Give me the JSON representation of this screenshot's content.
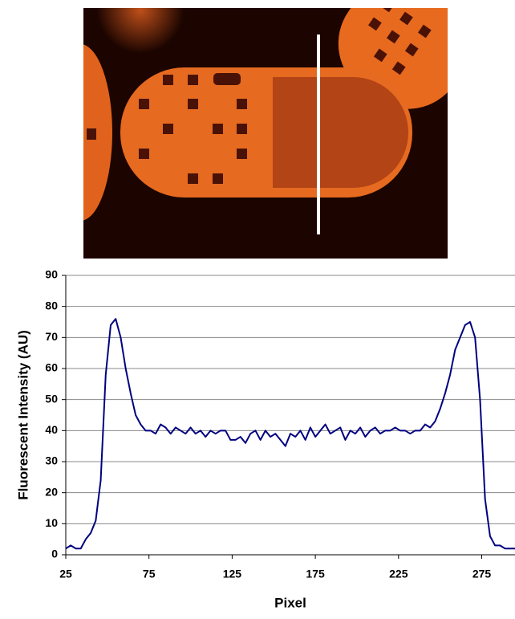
{
  "chart_data": {
    "type": "line",
    "y_label": "Fluorescent Intensity (AU)",
    "x_label": "Pixel",
    "x": [
      25,
      28,
      31,
      34,
      37,
      40,
      43,
      46,
      49,
      52,
      55,
      58,
      61,
      64,
      67,
      70,
      73,
      76,
      79,
      82,
      85,
      88,
      91,
      94,
      97,
      100,
      103,
      106,
      109,
      112,
      115,
      118,
      121,
      124,
      127,
      130,
      133,
      136,
      139,
      142,
      145,
      148,
      151,
      154,
      157,
      160,
      163,
      166,
      169,
      172,
      175,
      178,
      181,
      184,
      187,
      190,
      193,
      196,
      199,
      202,
      205,
      208,
      211,
      214,
      217,
      220,
      223,
      226,
      229,
      232,
      235,
      238,
      241,
      244,
      247,
      250,
      253,
      256,
      259,
      262,
      265,
      268,
      271,
      274,
      277,
      280,
      283,
      286,
      289,
      292,
      295
    ],
    "series": [
      {
        "color": "#000080",
        "values": [
          2,
          3,
          2,
          2,
          5,
          7,
          11,
          24,
          58,
          74,
          76,
          70,
          60,
          52,
          45,
          42,
          40,
          40,
          39,
          42,
          41,
          39,
          41,
          40,
          39,
          41,
          39,
          40,
          38,
          40,
          39,
          40,
          40,
          37,
          37,
          38,
          36,
          39,
          40,
          37,
          40,
          38,
          39,
          37,
          35,
          39,
          38,
          40,
          37,
          41,
          38,
          40,
          42,
          39,
          40,
          41,
          37,
          40,
          39,
          41,
          38,
          40,
          41,
          39,
          40,
          40,
          41,
          40,
          40,
          39,
          40,
          40,
          42,
          41,
          43,
          47,
          52,
          58,
          66,
          70,
          74,
          75,
          70,
          50,
          18,
          6,
          3,
          3,
          2,
          2,
          2
        ]
      }
    ],
    "xlim": [
      25,
      295
    ],
    "ylim": [
      0,
      90
    ],
    "xticks": [
      25,
      75,
      125,
      175,
      225,
      275
    ],
    "yticks": [
      0,
      10,
      20,
      30,
      40,
      50,
      60,
      70,
      80,
      90
    ],
    "grid": true
  }
}
